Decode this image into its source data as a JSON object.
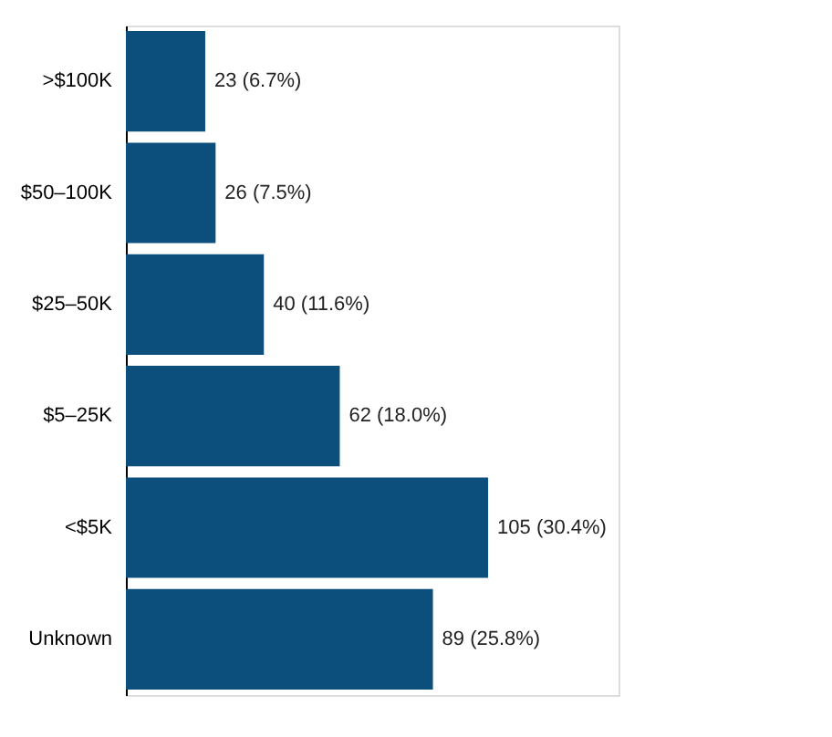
{
  "chart_data": {
    "type": "bar",
    "orientation": "horizontal",
    "categories": [
      ">$100K",
      "$50–100K",
      "$25–50K",
      "$5–25K",
      "<$5K",
      "Unknown"
    ],
    "values": [
      23,
      26,
      40,
      62,
      105,
      89
    ],
    "color": "#0d4f7c",
    "value_labels": [
      "23 (6.7%)",
      "26 (7.5%)",
      "40 (11.6%)",
      "62 (18.0%)",
      "105 (30.4%)",
      "89 (25.8%)"
    ],
    "grid": false
  }
}
